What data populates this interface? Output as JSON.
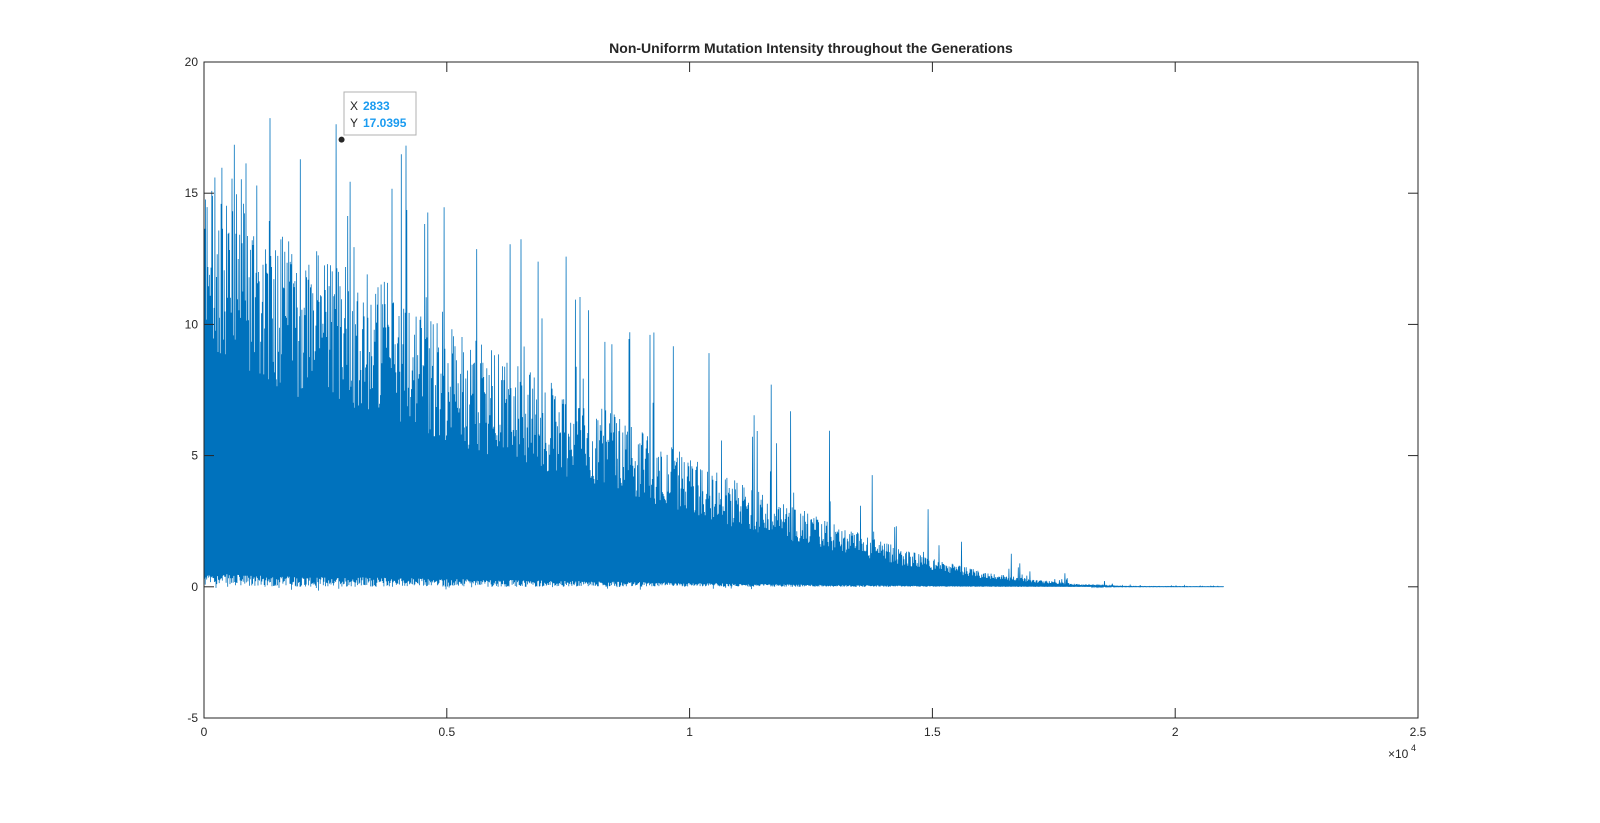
{
  "chart_data": {
    "type": "line",
    "title": "Non-Uniforrm Mutation Intensity throughout the Generations",
    "xlabel": "",
    "ylabel": "",
    "xlim": [
      0,
      25000
    ],
    "ylim": [
      -5,
      20
    ],
    "x_ticks": [
      0,
      5000,
      10000,
      15000,
      20000,
      25000
    ],
    "x_tick_labels": [
      "0",
      "0.5",
      "1",
      "1.5",
      "2",
      "2.5"
    ],
    "x_exponent_label": "×10",
    "x_exponent_power": "4",
    "y_ticks": [
      -5,
      0,
      5,
      10,
      15,
      20
    ],
    "y_tick_labels": [
      "-5",
      "0",
      "5",
      "10",
      "15",
      "20"
    ],
    "grid": false,
    "series": [
      {
        "color": "#0072bd",
        "description_envelope": {
          "x": [
            0,
            500,
            1000,
            2000,
            3000,
            4000,
            5000,
            6000,
            7000,
            8000,
            9000,
            10000,
            11000,
            12000,
            13000,
            14000,
            15000,
            16000,
            17000,
            18000,
            19000,
            21000
          ],
          "peak_y": [
            17.5,
            17.5,
            18.0,
            18.5,
            17.5,
            17.5,
            16.0,
            14.0,
            14.0,
            12.5,
            10.0,
            9.5,
            8.5,
            7.5,
            6.0,
            4.5,
            3.0,
            2.0,
            1.0,
            0.4,
            0.1,
            0.02
          ],
          "dense_y": [
            16.0,
            16.0,
            14.5,
            13.0,
            12.5,
            11.5,
            10.0,
            9.0,
            8.0,
            7.0,
            6.0,
            5.0,
            4.0,
            3.2,
            2.4,
            1.7,
            1.1,
            0.6,
            0.3,
            0.1,
            0.02,
            0.01
          ]
        },
        "end_x": 21000
      }
    ],
    "datatip": {
      "x_key": "X",
      "x_value": "2833",
      "y_key": "Y",
      "y_value": "17.0395",
      "point_x": 2833,
      "point_y": 17.0395
    }
  }
}
